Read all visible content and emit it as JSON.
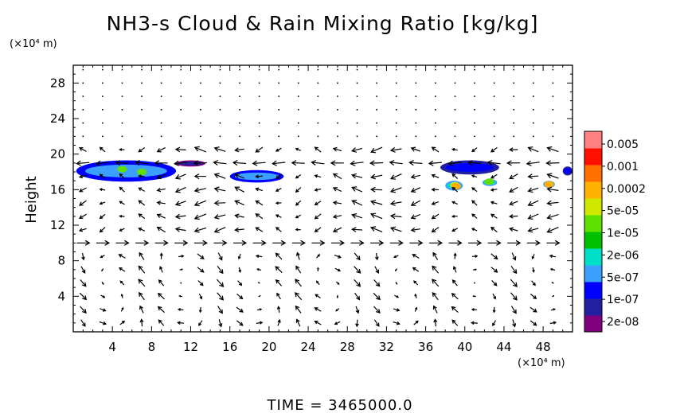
{
  "chart_data": {
    "type": "heatmap",
    "title": "NH3-s Cloud & Rain Mixing Ratio [kg/kg]",
    "ylabel": "Height",
    "xunit": "(×10⁴ m)",
    "yunit": "(×10⁴ m)",
    "footer_label": "TIME",
    "footer_value": "3465000.0",
    "footer_text": "TIME = 3465000.0",
    "xlim": [
      0,
      51
    ],
    "ylim": [
      0,
      30
    ],
    "xticks": [
      "4",
      "8",
      "12",
      "16",
      "20",
      "24",
      "28",
      "32",
      "36",
      "40",
      "44",
      "48"
    ],
    "xtick_values": [
      4,
      8,
      12,
      16,
      20,
      24,
      28,
      32,
      36,
      40,
      44,
      48
    ],
    "yticks": [
      "4",
      "8",
      "12",
      "16",
      "20",
      "24",
      "28"
    ],
    "ytick_values": [
      4,
      8,
      12,
      16,
      20,
      24,
      28
    ],
    "colorbar": {
      "labels": [
        "0.005",
        "0.001",
        "0.0002",
        "5e-05",
        "1e-05",
        "2e-06",
        "5e-07",
        "1e-07",
        "2e-08"
      ],
      "colors": [
        "#800080",
        "#2020a0",
        "#0000ff",
        "#3ca0ff",
        "#00e0c8",
        "#00c000",
        "#60e000",
        "#d0e800",
        "#ffb000",
        "#ff7000",
        "#ff1000",
        "#ff8080"
      ]
    },
    "regions": [
      {
        "x0": 0.3,
        "x1": 10.5,
        "y0": 16.9,
        "y1": 19.3,
        "level": 3
      },
      {
        "x0": 10.5,
        "x1": 13.5,
        "y0": 18.6,
        "y1": 19.3,
        "level": 1
      },
      {
        "x0": 16.0,
        "x1": 21.5,
        "y0": 16.8,
        "y1": 18.2,
        "level": 3
      },
      {
        "x0": 37.5,
        "x1": 43.5,
        "y0": 17.7,
        "y1": 19.3,
        "level": 2
      },
      {
        "x0": 50.0,
        "x1": 51.0,
        "y0": 17.6,
        "y1": 18.6,
        "level": 2
      },
      {
        "x0": 38.0,
        "x1": 39.8,
        "y0": 15.9,
        "y1": 17.0,
        "level": 4
      },
      {
        "x0": 41.8,
        "x1": 43.3,
        "y0": 16.4,
        "y1": 17.2,
        "level": 4
      },
      {
        "x0": 48.0,
        "x1": 49.2,
        "y0": 16.2,
        "y1": 17.0,
        "level": 4
      }
    ],
    "hotspots": [
      {
        "x": 5.0,
        "y": 18.3,
        "level": 6
      },
      {
        "x": 7.0,
        "y": 18.0,
        "level": 6
      },
      {
        "x": 39.0,
        "y": 16.5,
        "level": 7
      },
      {
        "x": 39.1,
        "y": 16.4,
        "level": 8
      },
      {
        "x": 42.5,
        "y": 16.9,
        "level": 6
      },
      {
        "x": 48.6,
        "y": 16.6,
        "level": 8
      }
    ]
  }
}
